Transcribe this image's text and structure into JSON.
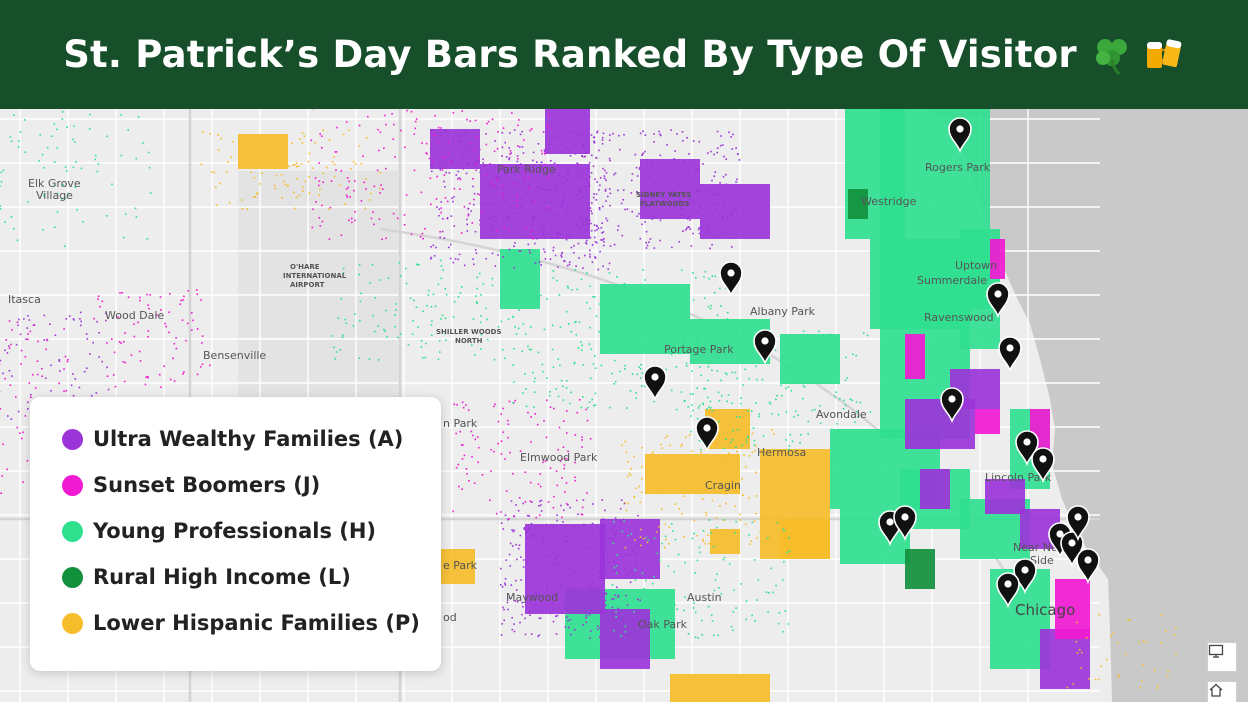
{
  "header": {
    "title": "St. Patrick’s Day Bars Ranked By Type Of Visitor",
    "icons": [
      "shamrock-icon",
      "beer-mugs-icon"
    ],
    "background": "#174f2b"
  },
  "legend": {
    "items": [
      {
        "label": "Ultra Wealthy Families (A)",
        "color": "#9b34d9"
      },
      {
        "label": "Sunset Boomers (J)",
        "color": "#f01ad2"
      },
      {
        "label": "Young Professionals (H)",
        "color": "#2fe08f"
      },
      {
        "label": "Rural High Income (L)",
        "color": "#12903c"
      },
      {
        "label": "Lower Hispanic Families (P)",
        "color": "#f6bd2a"
      }
    ]
  },
  "map": {
    "places": {
      "elk_grove_1": "Elk Grove",
      "elk_grove_2": "Village",
      "park_ridge": "Park Ridge",
      "sidney_1": "SIDNEY YATES",
      "sidney_2": "FLATWOODS",
      "ohare_1": "O'HARE",
      "ohare_2": "INTERNATIONAL",
      "ohare_3": "AIRPORT",
      "itasca": "Itasca",
      "wood_dale": "Wood Dale",
      "bensenville": "Bensenville",
      "shiller_1": "SHILLER WOODS",
      "shiller_2": "NORTH",
      "albany_park": "Albany Park",
      "portage_park": "Portage Park",
      "rogers_park": "Rogers Park",
      "westridge": "Westridge",
      "uptown": "Uptown",
      "summerdale": "Summerdale",
      "ravenswood": "Ravenswood",
      "avondale": "Avondale",
      "hermosa": "Hermosa",
      "elmwood_park": "Elmwood Park",
      "cragin": "Cragin",
      "lincoln_park": "Lincoln Park",
      "near_north_1": "Near North",
      "near_north_2": "Side",
      "chicago": "Chicago",
      "maywood": "Maywood",
      "austin": "Austin",
      "oak_park": "Oak Park",
      "park_left": "n Park",
      "pk_left": "e Park",
      "od_left": "od"
    },
    "pin_count": 18,
    "pin_color": "#111111"
  },
  "controls": [
    "monitor-icon",
    "home-icon"
  ]
}
